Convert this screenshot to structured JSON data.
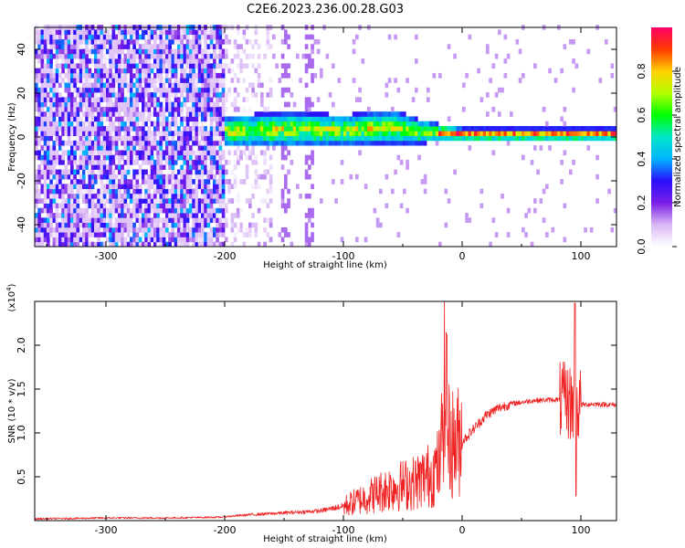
{
  "figure": {
    "title": "C2E6.2023.236.00.28.G03"
  },
  "chart_data": [
    {
      "type": "heatmap",
      "panel": "spectrogram",
      "xlabel": "Height of straight line (km)",
      "ylabel": "Frequency (Hz)",
      "xlim": [
        -360,
        130
      ],
      "ylim": [
        -50,
        50
      ],
      "xticks": [
        -300,
        -200,
        -100,
        0,
        100
      ],
      "yticks": [
        -40,
        -20,
        0,
        20,
        40
      ],
      "colorbar": {
        "label": "Normalized spectral amplitude",
        "range": [
          0,
          1
        ],
        "ticks": [
          0.0,
          0.2,
          0.4,
          0.6,
          0.8
        ],
        "colormap": [
          "#ffffff",
          "#d9b8f5",
          "#7a1ee6",
          "#2a10ff",
          "#00b4ff",
          "#00e6c8",
          "#00ff00",
          "#b4ff00",
          "#ffd000",
          "#ff3a00",
          "#ff0066"
        ]
      },
      "features": {
        "noise_region_x": [
          -360,
          -200
        ],
        "sparse_region_x": [
          -200,
          -160
        ],
        "signal_band": [
          {
            "x": -200,
            "center": 1.5,
            "halfwidth": 7
          },
          {
            "x": -150,
            "center": 2.5,
            "halfwidth": 8
          },
          {
            "x": -100,
            "center": 2.0,
            "halfwidth": 7
          },
          {
            "x": -60,
            "center": 3.5,
            "halfwidth": 8
          },
          {
            "x": -40,
            "center": 1.5,
            "halfwidth": 6
          },
          {
            "x": -20,
            "center": 1.0,
            "halfwidth": 4
          },
          {
            "x": 0,
            "center": 0.0,
            "halfwidth": 3
          },
          {
            "x": 130,
            "center": 0.0,
            "halfwidth": 3
          }
        ],
        "vertical_streaks_x": [
          -150,
          -130
        ]
      }
    },
    {
      "type": "line",
      "panel": "snr",
      "xlabel": "Height of straight line (km)",
      "ylabel": "SNR (10 * v/v)",
      "scale_label": "(x10",
      "scale_exp": "4",
      "scale_close": ")",
      "xlim": [
        -360,
        130
      ],
      "ylim": [
        0,
        2.5
      ],
      "xticks": [
        -300,
        -200,
        -100,
        0,
        100
      ],
      "yticks": [
        0.5,
        1.0,
        1.5,
        2.0
      ],
      "ytick_labels": [
        "0.5",
        "1.0",
        "1.5",
        "2.0"
      ],
      "color": "#ee2222",
      "series": [
        {
          "x": [
            -360,
            -300,
            -250,
            -200,
            -180,
            -150,
            -120,
            -100,
            -80,
            -60,
            -40,
            -25,
            -18,
            -15,
            -12,
            -5,
            0,
            10,
            20,
            30,
            40,
            60,
            80,
            90,
            95,
            100,
            110,
            130
          ],
          "y": [
            0.02,
            0.03,
            0.03,
            0.04,
            0.06,
            0.08,
            0.1,
            0.15,
            0.25,
            0.35,
            0.4,
            0.5,
            0.6,
            1.7,
            0.85,
            0.8,
            0.9,
            1.05,
            1.2,
            1.28,
            1.33,
            1.37,
            1.38,
            1.35,
            1.3,
            1.32,
            1.33,
            1.32
          ]
        }
      ],
      "spikes": [
        {
          "x": -13,
          "y": 2.12
        },
        {
          "x": 95,
          "y": 2.48
        },
        {
          "x": 96,
          "y": 0.28
        }
      ]
    }
  ]
}
